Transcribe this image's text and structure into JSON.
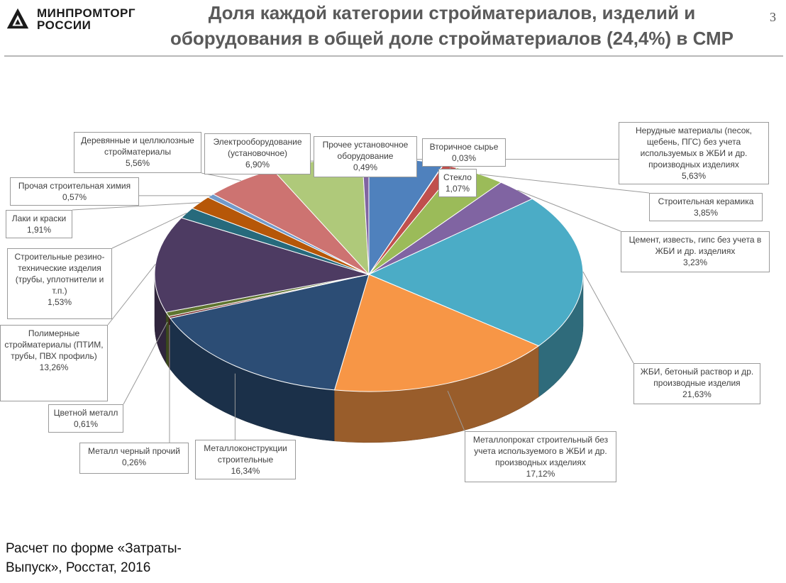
{
  "header": {
    "logo_line1": "МИНПРОМТОРГ",
    "logo_line2": "РОССИИ",
    "title": "Доля каждой категории стройматериалов, изделий и оборудования в общей доле стройматериалов (24,4%) в СМР",
    "page_number": "3"
  },
  "source": {
    "line1": "Расчет по форме «Затраты-",
    "line2": "Выпуск», Росстат, 2016"
  },
  "chart_data": {
    "type": "pie",
    "title": "Доля каждой категории стройматериалов, изделий и оборудования в общей доле стройматериалов (24,4%) в СМР",
    "unit": "%",
    "slices": [
      {
        "label": "Нерудные материалы (песок, щебень, ПГС) без учета используемых в ЖБИ и др. производных изделиях",
        "value": 5.63,
        "value_label": "5,63%",
        "color": "#4f81bd"
      },
      {
        "label": "Вторичное сырье",
        "value": 0.03,
        "value_label": "0,03%",
        "color": "#c0504d"
      },
      {
        "label": "Стекло",
        "value": 1.07,
        "value_label": "1,07%",
        "color": "#c0504d"
      },
      {
        "label": "Строительная керамика",
        "value": 3.85,
        "value_label": "3,85%",
        "color": "#9bbb59"
      },
      {
        "label": "Цемент, известь, гипс без учета в ЖБИ и др. изделиях",
        "value": 3.23,
        "value_label": "3,23%",
        "color": "#8064a2"
      },
      {
        "label": "ЖБИ, бетоный раствор и др. производные изделия",
        "value": 21.63,
        "value_label": "21,63%",
        "color": "#4bacc6"
      },
      {
        "label": "Металлопрокат строительный без учета используемого в ЖБИ и др. производных изделиях",
        "value": 17.12,
        "value_label": "17,12%",
        "color": "#f79646"
      },
      {
        "label": "Металлоконструкции строительные",
        "value": 16.34,
        "value_label": "16,34%",
        "color": "#2c4d75"
      },
      {
        "label": "Металл черный прочий",
        "value": 0.26,
        "value_label": "0,26%",
        "color": "#772c2a"
      },
      {
        "label": "Цветной металл",
        "value": 0.61,
        "value_label": "0,61%",
        "color": "#5f7530"
      },
      {
        "label": "Полимерные стройматериалы (ПТИМ, трубы, ПВХ профиль)",
        "value": 13.26,
        "value_label": "13,26%",
        "color": "#4d3b62"
      },
      {
        "label": "Строительные резино-технические изделия (трубы, уплотнители и т.п.)",
        "value": 1.53,
        "value_label": "1,53%",
        "color": "#276a7c"
      },
      {
        "label": "Лаки и краски",
        "value": 1.91,
        "value_label": "1,91%",
        "color": "#b65708"
      },
      {
        "label": "Прочая строительная химия",
        "value": 0.57,
        "value_label": "0,57%",
        "color": "#729aca"
      },
      {
        "label": "Деревянные и целлюлозные стройматериалы",
        "value": 5.56,
        "value_label": "5,56%",
        "color": "#cd7371"
      },
      {
        "label": "Электрооборудование (установочное)",
        "value": 6.9,
        "value_label": "6,90%",
        "color": "#afc97a"
      },
      {
        "label": "Прочее установочное оборудование",
        "value": 0.49,
        "value_label": "0,49%",
        "color": "#8064a2"
      }
    ]
  }
}
